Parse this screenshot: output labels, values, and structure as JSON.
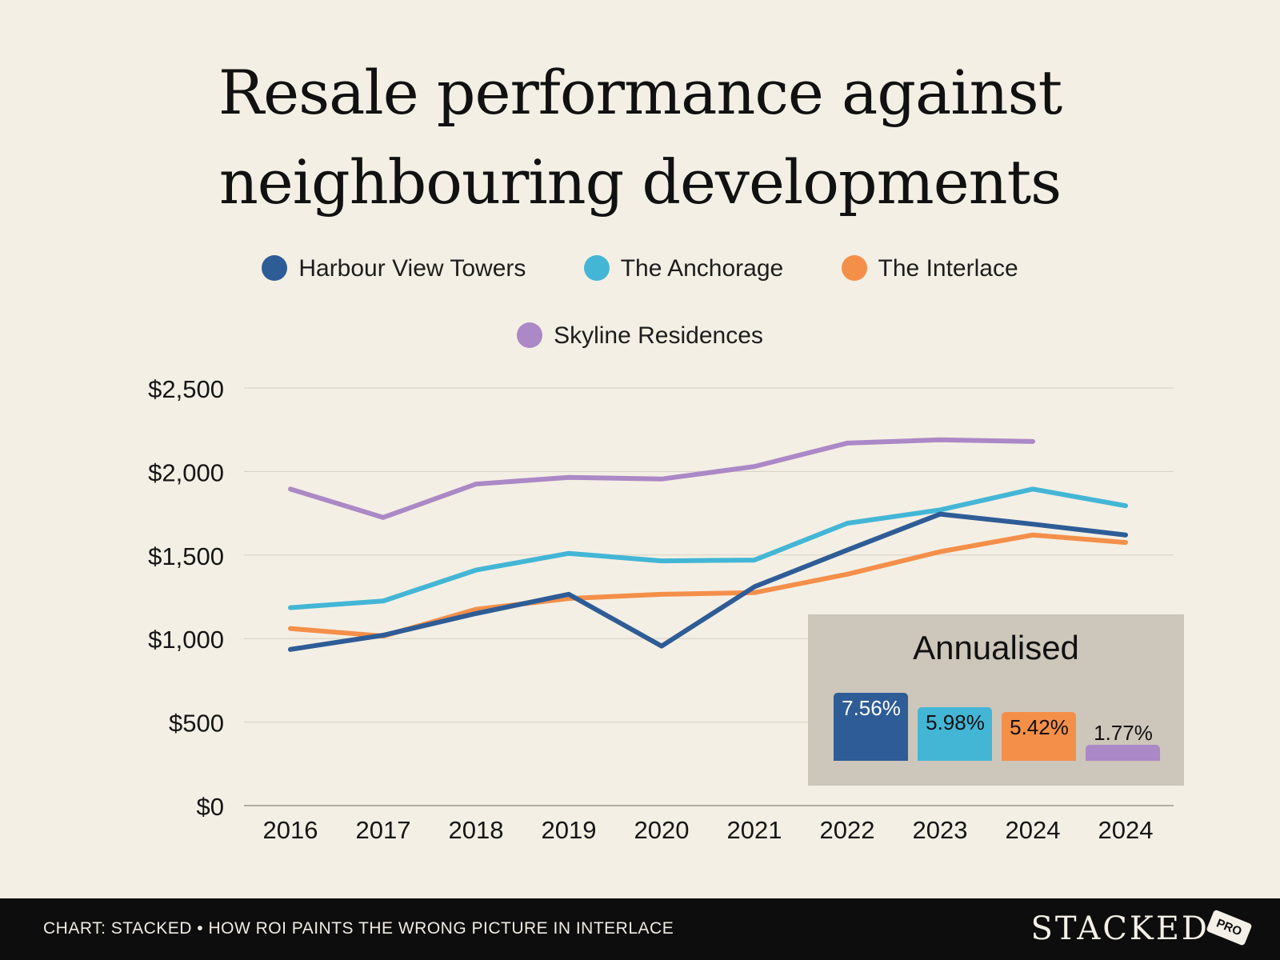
{
  "chart_data": {
    "type": "line",
    "title": "Resale performance against neighbouring developments",
    "title_lines": [
      "Resale performance against",
      "neighbouring developments"
    ],
    "categories": [
      "2016",
      "2017",
      "2018",
      "2019",
      "2020",
      "2021",
      "2022",
      "2023",
      "2024",
      "2024"
    ],
    "ylim": [
      0,
      2500
    ],
    "yticks": [
      0,
      500,
      1000,
      1500,
      2000,
      2500
    ],
    "ytick_labels": [
      "$0",
      "$500",
      "$1,000",
      "$1,500",
      "$2,000",
      "$2,500"
    ],
    "xlabel": "",
    "ylabel": "",
    "grid": true,
    "legend_position": "top-center",
    "series": [
      {
        "name": "Harbour View Towers",
        "color": "#2e5c96",
        "values": [
          935,
          1020,
          1150,
          1265,
          955,
          1310,
          1530,
          1745,
          1685,
          1620
        ]
      },
      {
        "name": "The Anchorage",
        "color": "#43b6d6",
        "values": [
          1185,
          1225,
          1410,
          1510,
          1465,
          1470,
          1690,
          1770,
          1895,
          1795
        ]
      },
      {
        "name": "The Interlace",
        "color": "#f48f4a",
        "values": [
          1060,
          1015,
          1175,
          1240,
          1265,
          1275,
          1385,
          1520,
          1620,
          1575
        ]
      },
      {
        "name": "Skyline Residences",
        "color": "#ab88c6",
        "values": [
          1895,
          1725,
          1925,
          1965,
          1955,
          2030,
          2170,
          2190,
          2180,
          null
        ]
      }
    ],
    "annotation": {
      "title": "Annualised",
      "bars": [
        {
          "series": "Harbour View Towers",
          "label": "7.56%",
          "value": 7.56,
          "color": "#2e5c96",
          "label_color": "#ffffff"
        },
        {
          "series": "The Anchorage",
          "label": "5.98%",
          "value": 5.98,
          "color": "#43b6d6",
          "label_color": "#111111"
        },
        {
          "series": "The Interlace",
          "label": "5.42%",
          "value": 5.42,
          "color": "#f48f4a",
          "label_color": "#111111"
        },
        {
          "series": "Skyline Residences",
          "label": "1.77%",
          "value": 1.77,
          "color": "#ab88c6",
          "label_color": "#111111"
        }
      ]
    }
  },
  "footer": {
    "caption": "CHART: STACKED • HOW ROI PAINTS THE WRONG PICTURE IN INTERLACE",
    "brand": "STACKED",
    "badge": "PRO"
  }
}
